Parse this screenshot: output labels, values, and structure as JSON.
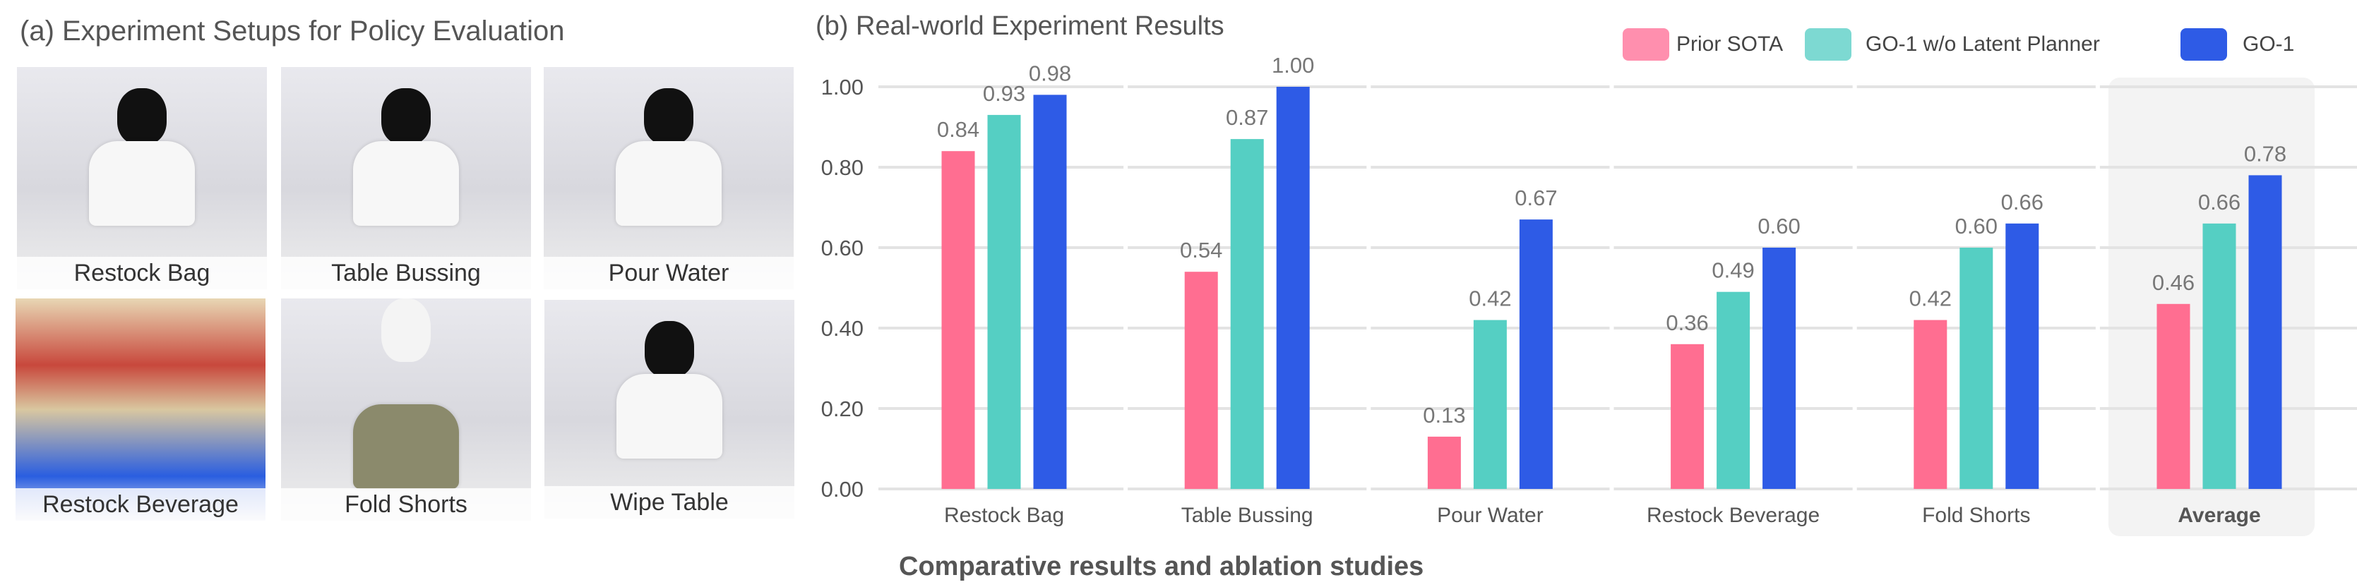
{
  "panel_a": {
    "title": "(a) Experiment Setups for Policy Evaluation",
    "tiles": [
      {
        "label": "Restock Bag"
      },
      {
        "label": "Table Bussing"
      },
      {
        "label": "Pour Water"
      },
      {
        "label": "Restock Beverage"
      },
      {
        "label": "Fold Shorts"
      },
      {
        "label": "Wipe Table"
      }
    ]
  },
  "caption": "Comparative results and ablation studies",
  "chart_data": {
    "type": "bar",
    "title": "(b) Real-world Experiment Results",
    "xlabel": "",
    "ylabel": "",
    "ylim": [
      0,
      1.0
    ],
    "yticks": [
      "0.00",
      "0.20",
      "0.40",
      "0.60",
      "0.80",
      "1.00"
    ],
    "grid": true,
    "legend_position": "top-right",
    "categories": [
      "Restock Bag",
      "Table Bussing",
      "Pour Water",
      "Restock Beverage",
      "Fold Shorts",
      "Average"
    ],
    "highlighted_category": "Average",
    "series": [
      {
        "name": "Prior SOTA",
        "color": "#FF6E91",
        "values": [
          0.84,
          0.54,
          0.13,
          0.36,
          0.42,
          0.46
        ],
        "labels": [
          "0.84",
          "0.54",
          "0.13",
          "0.36",
          "0.42",
          "0.46"
        ]
      },
      {
        "name": "GO-1 w/o Latent Planner",
        "color": "#55CFC3",
        "values": [
          0.93,
          0.87,
          0.42,
          0.49,
          0.6,
          0.66
        ],
        "labels": [
          "0.93",
          "0.87",
          "0.42",
          "0.49",
          "0.60",
          "0.66"
        ]
      },
      {
        "name": "GO-1",
        "color": "#2E5BE6",
        "values": [
          0.98,
          1.0,
          0.67,
          0.6,
          0.66,
          0.78
        ],
        "labels": [
          "0.98",
          "1.00",
          "0.67",
          "0.60",
          "0.66",
          "0.78"
        ]
      }
    ]
  }
}
